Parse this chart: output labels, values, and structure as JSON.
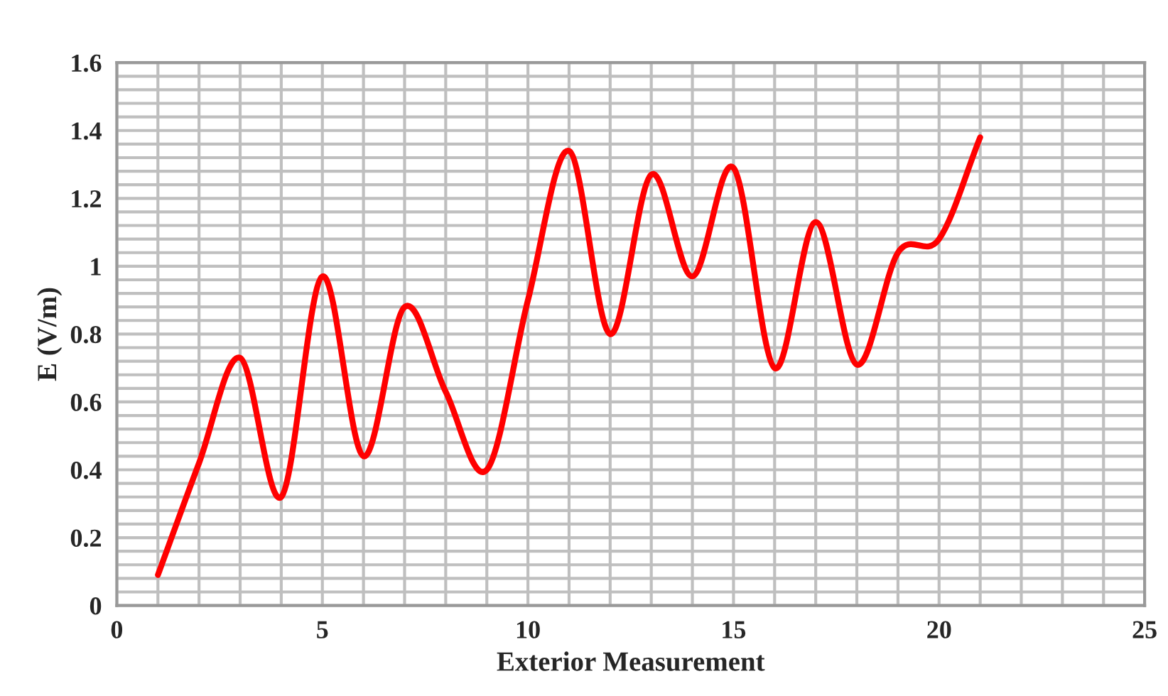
{
  "chart_data": {
    "type": "line",
    "xlabel": "Exterior Measurement",
    "ylabel": "E (V/m)",
    "x": [
      1,
      2,
      3,
      4,
      5,
      6,
      7,
      8,
      9,
      10,
      11,
      12,
      13,
      14,
      15,
      16,
      17,
      18,
      19,
      20,
      21
    ],
    "series": [
      {
        "color": "#ff0000",
        "values": [
          0.09,
          0.42,
          0.73,
          0.32,
          0.97,
          0.44,
          0.88,
          0.63,
          0.4,
          0.9,
          1.34,
          0.8,
          1.27,
          0.97,
          1.29,
          0.7,
          1.13,
          0.71,
          1.04,
          1.08,
          1.38
        ]
      }
    ],
    "xlim": [
      0,
      25
    ],
    "xticks": [
      0,
      5,
      10,
      15,
      20,
      25
    ],
    "ylim": [
      0,
      1.6
    ],
    "yticks": [
      0,
      0.2,
      0.4,
      0.6,
      0.8,
      1,
      1.2,
      1.4,
      1.6
    ],
    "grid": true,
    "marker": "none",
    "line_style": "solid"
  }
}
